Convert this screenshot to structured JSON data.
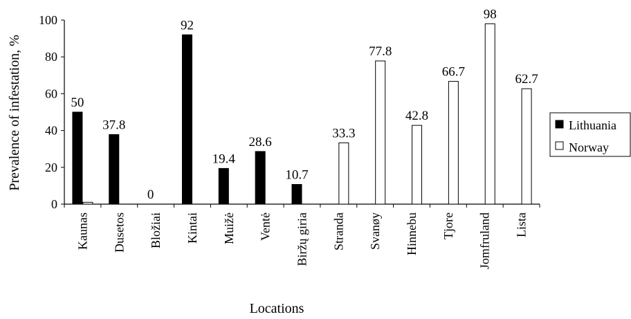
{
  "chart_data": {
    "type": "bar",
    "xlabel": "Locations",
    "ylabel": "Prevalence of infestation, %",
    "ylim": [
      0,
      100
    ],
    "yticks": [
      0,
      20,
      40,
      60,
      80,
      100
    ],
    "grid": false,
    "legend_position": "right",
    "categories": [
      "Kaunas",
      "Dusetos",
      "Bložiai",
      "Kintai",
      "Muižė",
      "Ventė",
      "Biržų giria",
      "Stranda",
      "Svanøy",
      "Hinnebu",
      "Tjore",
      "Jomfruland",
      "Lista"
    ],
    "series": [
      {
        "name": "Lithuania",
        "color": "#000000",
        "fill": "solid",
        "values": [
          50,
          37.8,
          0,
          92,
          19.4,
          28.6,
          10.7,
          null,
          null,
          null,
          null,
          null,
          null
        ],
        "labels": [
          "50",
          "37.8",
          "0",
          "92",
          "19.4",
          "28.6",
          "10.7",
          "",
          "",
          "",
          "",
          "",
          ""
        ]
      },
      {
        "name": "Norway",
        "color": "#ffffff",
        "fill": "outline",
        "values": [
          1,
          null,
          null,
          null,
          null,
          null,
          null,
          33.3,
          77.8,
          42.8,
          66.7,
          98,
          62.7
        ],
        "labels": [
          "",
          "",
          "",
          "",
          "",
          "",
          "",
          "33.3",
          "77.8",
          "42.8",
          "66.7",
          "98",
          "62.7"
        ]
      }
    ]
  }
}
